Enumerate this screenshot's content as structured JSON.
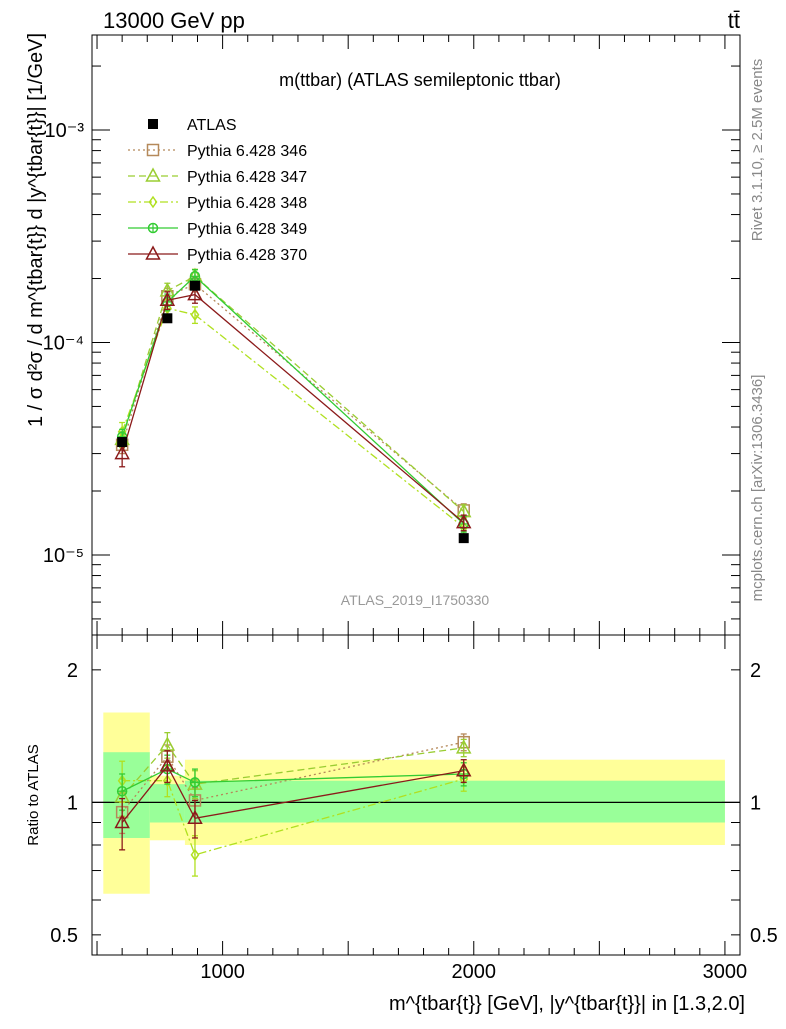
{
  "header": {
    "left": "13000 GeV pp",
    "right": "tt̄"
  },
  "side_labels": {
    "rivet": "Rivet 3.1.10, ≥ 2.5M events",
    "mcplots": "mcplots.cern.ch [arXiv:1306.3436]"
  },
  "watermark": "ATLAS_2019_I1750330",
  "colors": {
    "atlas": "#000000",
    "p346": "#b5895a",
    "p347": "#9acd32",
    "p348": "#b0e020",
    "p349": "#33cc33",
    "p370": "#8b1a1a",
    "band_outer": "#ffff99",
    "band_inner": "#99ff99"
  },
  "chart_data": [
    {
      "type": "line",
      "panel": "main",
      "title": "m(ttbar) (ATLAS semileptonic ttbar)",
      "ylabel": "1 / σ d²σ / d m^{tbar{t}} d |y^{tbar{t}}| [1/GeV]",
      "yscale": "log",
      "xlim": [
        480,
        3060
      ],
      "ylim": [
        4.2e-06,
        0.0028
      ],
      "yticks": [
        {
          "value": 1e-05,
          "label": "10⁻⁵"
        },
        {
          "value": 0.0001,
          "label": "10⁻⁴"
        },
        {
          "value": 0.001,
          "label": "10⁻³"
        }
      ],
      "legend_position": "top-left",
      "series": [
        {
          "name": "ATLAS",
          "style": "data",
          "marker": "square",
          "x": [
            600,
            780,
            890,
            1960
          ],
          "y": [
            3.4e-05,
            0.00013,
            0.000185,
            1.2e-05
          ],
          "xerr": [
            [
              480,
              720
            ],
            [
              720,
              850
            ],
            [
              850,
              3000
            ],
            [
              850,
              3000
            ]
          ]
        },
        {
          "name": "Pythia 6.428 346",
          "marker": "square-open",
          "dash": "2,3",
          "x": [
            600,
            780,
            890,
            1960
          ],
          "y": [
            3.3e-05,
            0.000165,
            0.000188,
            1.62e-05
          ],
          "err": [
            3e-06,
            1.5e-05,
            1.5e-05,
            1.2e-06
          ]
        },
        {
          "name": "Pythia 6.428 347",
          "marker": "triangle-open",
          "dash": "7,4",
          "x": [
            600,
            780,
            890,
            1960
          ],
          "y": [
            3.5e-05,
            0.000175,
            0.000205,
            1.6e-05
          ],
          "err": [
            3e-06,
            1.5e-05,
            1.6e-05,
            1.2e-06
          ]
        },
        {
          "name": "Pythia 6.428 348",
          "marker": "diamond-open",
          "dash": "8,3,2,3",
          "x": [
            600,
            780,
            890,
            1960
          ],
          "y": [
            3.8e-05,
            0.000145,
            0.000135,
            1.35e-05
          ],
          "err": [
            4e-06,
            1.4e-05,
            1.2e-05,
            1.2e-06
          ]
        },
        {
          "name": "Pythia 6.428 349",
          "marker": "circle-plus",
          "dash": "",
          "x": [
            600,
            780,
            890,
            1960
          ],
          "y": [
            3.6e-05,
            0.000155,
            0.000205,
            1.4e-05
          ],
          "err": [
            3e-06,
            1.4e-05,
            1.5e-05,
            1.2e-06
          ]
        },
        {
          "name": "Pythia 6.428 370",
          "marker": "triangle-open",
          "dash": "",
          "x": [
            600,
            780,
            890,
            1960
          ],
          "y": [
            3e-05,
            0.000158,
            0.000168,
            1.42e-05
          ],
          "err": [
            4e-06,
            1.5e-05,
            1.5e-05,
            1.2e-06
          ]
        }
      ]
    },
    {
      "type": "line",
      "panel": "ratio",
      "xlabel": "m^{tbar{t}} [GeV], |y^{tbar{t}}| in [1.3,2.0]",
      "ylabel": "Ratio to ATLAS",
      "yscale": "log",
      "xlim": [
        480,
        3060
      ],
      "ylim": [
        0.45,
        2.4
      ],
      "xticks": [
        {
          "value": 1000,
          "label": "1000"
        },
        {
          "value": 2000,
          "label": "2000"
        },
        {
          "value": 3000,
          "label": "3000"
        }
      ],
      "yticks": [
        {
          "value": 0.5,
          "label": "0.5"
        },
        {
          "value": 1,
          "label": "1"
        },
        {
          "value": 2,
          "label": "2"
        }
      ],
      "bands": [
        {
          "x": [
            525,
            710
          ],
          "outer": [
            0.62,
            1.6
          ],
          "inner": [
            0.83,
            1.3
          ]
        },
        {
          "x": [
            710,
            850
          ],
          "outer": [
            0.82,
            1.15
          ],
          "inner": [
            0.9,
            1.1
          ]
        },
        {
          "x": [
            850,
            3000
          ],
          "outer": [
            0.8,
            1.25
          ],
          "inner": [
            0.9,
            1.12
          ]
        }
      ],
      "series": [
        {
          "name": "Pythia 6.428 346",
          "x": [
            600,
            780,
            890,
            1960
          ],
          "y": [
            0.95,
            1.27,
            1.01,
            1.37
          ],
          "err": [
            0.1,
            0.08,
            0.07,
            0.06
          ]
        },
        {
          "name": "Pythia 6.428 347",
          "x": [
            600,
            780,
            890,
            1960
          ],
          "y": [
            1.03,
            1.35,
            1.1,
            1.33
          ],
          "err": [
            0.1,
            0.09,
            0.08,
            0.06
          ]
        },
        {
          "name": "Pythia 6.428 348",
          "x": [
            600,
            780,
            890,
            1960
          ],
          "y": [
            1.12,
            1.12,
            0.76,
            1.13
          ],
          "err": [
            0.12,
            0.09,
            0.08,
            0.07
          ]
        },
        {
          "name": "Pythia 6.428 349",
          "x": [
            600,
            780,
            890,
            1960
          ],
          "y": [
            1.06,
            1.19,
            1.11,
            1.16
          ],
          "err": [
            0.1,
            0.09,
            0.08,
            0.07
          ]
        },
        {
          "name": "Pythia 6.428 370",
          "x": [
            600,
            780,
            890,
            1960
          ],
          "y": [
            0.9,
            1.21,
            0.92,
            1.18
          ],
          "err": [
            0.12,
            0.1,
            0.09,
            0.07
          ]
        }
      ]
    }
  ]
}
